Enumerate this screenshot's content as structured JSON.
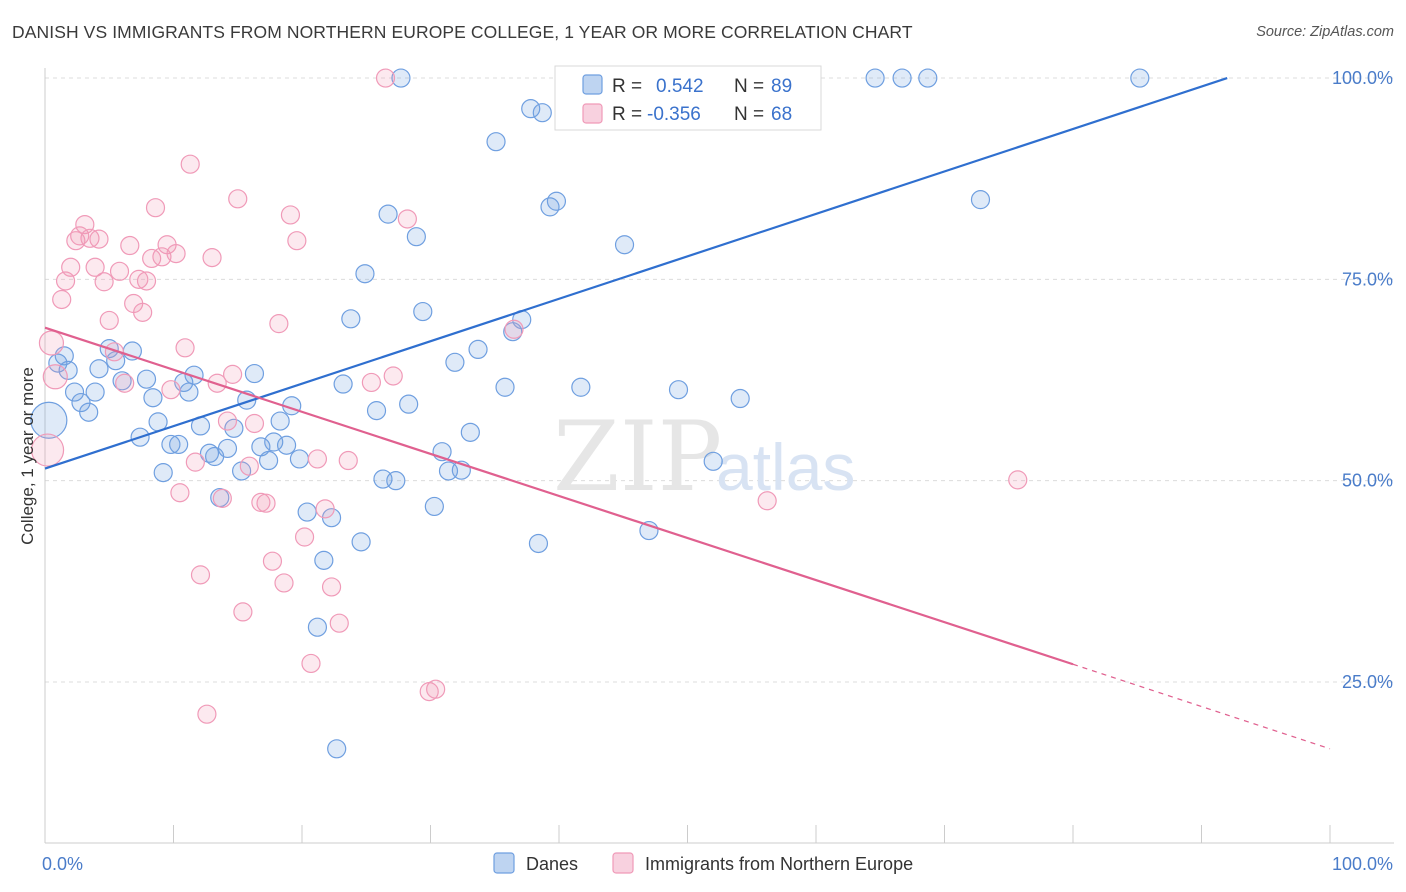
{
  "title": "DANISH VS IMMIGRANTS FROM NORTHERN EUROPE COLLEGE, 1 YEAR OR MORE CORRELATION CHART",
  "source": "Source: ZipAtlas.com",
  "watermark": {
    "zip": "ZIP",
    "atlas": "atlas"
  },
  "chart_data": {
    "type": "scatter",
    "xlabel": "",
    "ylabel": "College, 1 year or more",
    "xlim": [
      0,
      100
    ],
    "ylim": [
      5,
      101
    ],
    "x_tick_labels": [
      "0.0%",
      "100.0%"
    ],
    "y_ticks": [
      25,
      50,
      75,
      100
    ],
    "y_tick_labels": [
      "25.0%",
      "50.0%",
      "75.0%",
      "100.0%"
    ],
    "grid": "horizontal dashed",
    "legend_stats": [
      {
        "r_label": "R =",
        "r_value": "0.542",
        "n_label": "N =",
        "n_value": "89",
        "color": "#6f9fe0"
      },
      {
        "r_label": "R =",
        "r_value": "-0.356",
        "n_label": "N =",
        "n_value": "68",
        "color": "#f09ab8"
      }
    ],
    "legend_bottom": [
      "Danes",
      "Immigrants from Northern Europe"
    ],
    "series": [
      {
        "name": "Danes",
        "color": "#6f9fe0",
        "trend": {
          "x0": 0,
          "y0": 51.5,
          "x1": 92,
          "y1": 100
        },
        "points": [
          [
            0.3,
            57.5
          ],
          [
            1,
            64.6
          ],
          [
            1.5,
            65.5
          ],
          [
            1.8,
            63.7
          ],
          [
            2.3,
            61
          ],
          [
            2.8,
            59.7
          ],
          [
            3.4,
            58.5
          ],
          [
            3.9,
            61
          ],
          [
            4.2,
            63.9
          ],
          [
            5,
            66.4
          ],
          [
            5.5,
            64.9
          ],
          [
            6,
            62.4
          ],
          [
            6.8,
            66.1
          ],
          [
            7.4,
            55.4
          ],
          [
            7.9,
            62.6
          ],
          [
            8.4,
            60.3
          ],
          [
            8.8,
            57.3
          ],
          [
            9.2,
            51
          ],
          [
            9.8,
            54.5
          ],
          [
            10.4,
            54.5
          ],
          [
            10.8,
            62.2
          ],
          [
            11.2,
            61
          ],
          [
            11.6,
            63.1
          ],
          [
            12.1,
            56.8
          ],
          [
            12.8,
            53.4
          ],
          [
            13.2,
            53
          ],
          [
            13.6,
            47.9
          ],
          [
            14.2,
            54
          ],
          [
            14.7,
            56.5
          ],
          [
            15.3,
            51.2
          ],
          [
            15.7,
            60
          ],
          [
            16.3,
            63.3
          ],
          [
            16.8,
            54.2
          ],
          [
            17.4,
            52.5
          ],
          [
            17.8,
            54.8
          ],
          [
            18.3,
            57.4
          ],
          [
            18.8,
            54.4
          ],
          [
            19.2,
            59.3
          ],
          [
            19.8,
            52.7
          ],
          [
            20.4,
            46.1
          ],
          [
            21.2,
            31.8
          ],
          [
            21.7,
            40.1
          ],
          [
            22.3,
            45.4
          ],
          [
            22.7,
            16.7
          ],
          [
            23.2,
            62
          ],
          [
            23.8,
            70.1
          ],
          [
            24.6,
            42.4
          ],
          [
            24.9,
            75.7
          ],
          [
            25.8,
            58.7
          ],
          [
            26.3,
            50.2
          ],
          [
            26.7,
            83.1
          ],
          [
            27.3,
            50
          ],
          [
            27.7,
            100
          ],
          [
            28.3,
            59.5
          ],
          [
            28.9,
            80.3
          ],
          [
            29.4,
            71
          ],
          [
            30.3,
            46.8
          ],
          [
            30.9,
            53.6
          ],
          [
            31.4,
            51.2
          ],
          [
            31.9,
            64.7
          ],
          [
            32.4,
            51.3
          ],
          [
            33.1,
            56
          ],
          [
            33.7,
            66.3
          ],
          [
            35.1,
            92.1
          ],
          [
            35.8,
            61.6
          ],
          [
            36.4,
            68.5
          ],
          [
            37.1,
            70
          ],
          [
            37.8,
            96.2
          ],
          [
            38.4,
            42.2
          ],
          [
            38.7,
            95.7
          ],
          [
            39.3,
            84
          ],
          [
            39.8,
            84.7
          ],
          [
            41.7,
            61.6
          ],
          [
            44,
            100
          ],
          [
            45.1,
            79.3
          ],
          [
            47,
            43.8
          ],
          [
            49.3,
            61.3
          ],
          [
            52,
            52.4
          ],
          [
            54.1,
            60.2
          ],
          [
            56.6,
            100
          ],
          [
            64.6,
            100
          ],
          [
            66.7,
            100
          ],
          [
            68.7,
            100
          ],
          [
            72.8,
            84.9
          ],
          [
            85.2,
            100
          ]
        ]
      },
      {
        "name": "Immigrants from Northern Europe",
        "color": "#f09ab8",
        "trend": {
          "x0": 0,
          "y0": 69,
          "x1": 80,
          "y1": 27.2,
          "dash_x1": 100,
          "dash_y1": 16.7
        },
        "points": [
          [
            0.2,
            53.8
          ],
          [
            0.5,
            67.1
          ],
          [
            0.8,
            62.9
          ],
          [
            1.3,
            72.5
          ],
          [
            1.6,
            74.8
          ],
          [
            2,
            76.5
          ],
          [
            2.4,
            79.8
          ],
          [
            2.7,
            80.4
          ],
          [
            3.1,
            81.8
          ],
          [
            3.5,
            80.1
          ],
          [
            3.9,
            76.5
          ],
          [
            4.2,
            80
          ],
          [
            4.6,
            74.7
          ],
          [
            5,
            69.9
          ],
          [
            5.4,
            66
          ],
          [
            5.8,
            76
          ],
          [
            6.2,
            62.1
          ],
          [
            6.6,
            79.2
          ],
          [
            6.9,
            72
          ],
          [
            7.3,
            75
          ],
          [
            7.6,
            70.9
          ],
          [
            7.9,
            74.8
          ],
          [
            8.3,
            77.6
          ],
          [
            8.6,
            83.9
          ],
          [
            9.1,
            77.8
          ],
          [
            9.5,
            79.3
          ],
          [
            9.8,
            61.3
          ],
          [
            10.2,
            78.2
          ],
          [
            10.5,
            48.5
          ],
          [
            10.9,
            66.5
          ],
          [
            11.3,
            89.3
          ],
          [
            11.7,
            52.3
          ],
          [
            12.1,
            38.3
          ],
          [
            12.6,
            21
          ],
          [
            13,
            77.7
          ],
          [
            13.4,
            62.1
          ],
          [
            13.8,
            47.8
          ],
          [
            14.2,
            57.4
          ],
          [
            14.6,
            63.2
          ],
          [
            15,
            85
          ],
          [
            15.4,
            33.7
          ],
          [
            15.9,
            51.8
          ],
          [
            16.3,
            57.1
          ],
          [
            16.8,
            47.3
          ],
          [
            17.2,
            47.2
          ],
          [
            17.7,
            40
          ],
          [
            18.2,
            69.5
          ],
          [
            18.6,
            37.3
          ],
          [
            19.1,
            83
          ],
          [
            19.6,
            79.8
          ],
          [
            20.2,
            43
          ],
          [
            20.7,
            27.3
          ],
          [
            21.2,
            52.7
          ],
          [
            21.8,
            46.5
          ],
          [
            22.3,
            36.8
          ],
          [
            22.9,
            32.3
          ],
          [
            23.6,
            52.5
          ],
          [
            25.4,
            62.2
          ],
          [
            26.5,
            100
          ],
          [
            27.1,
            63
          ],
          [
            28.2,
            82.5
          ],
          [
            29.9,
            23.8
          ],
          [
            30.4,
            24.1
          ],
          [
            36.5,
            68.8
          ],
          [
            56.2,
            47.5
          ],
          [
            75.7,
            50.1
          ]
        ]
      }
    ]
  }
}
